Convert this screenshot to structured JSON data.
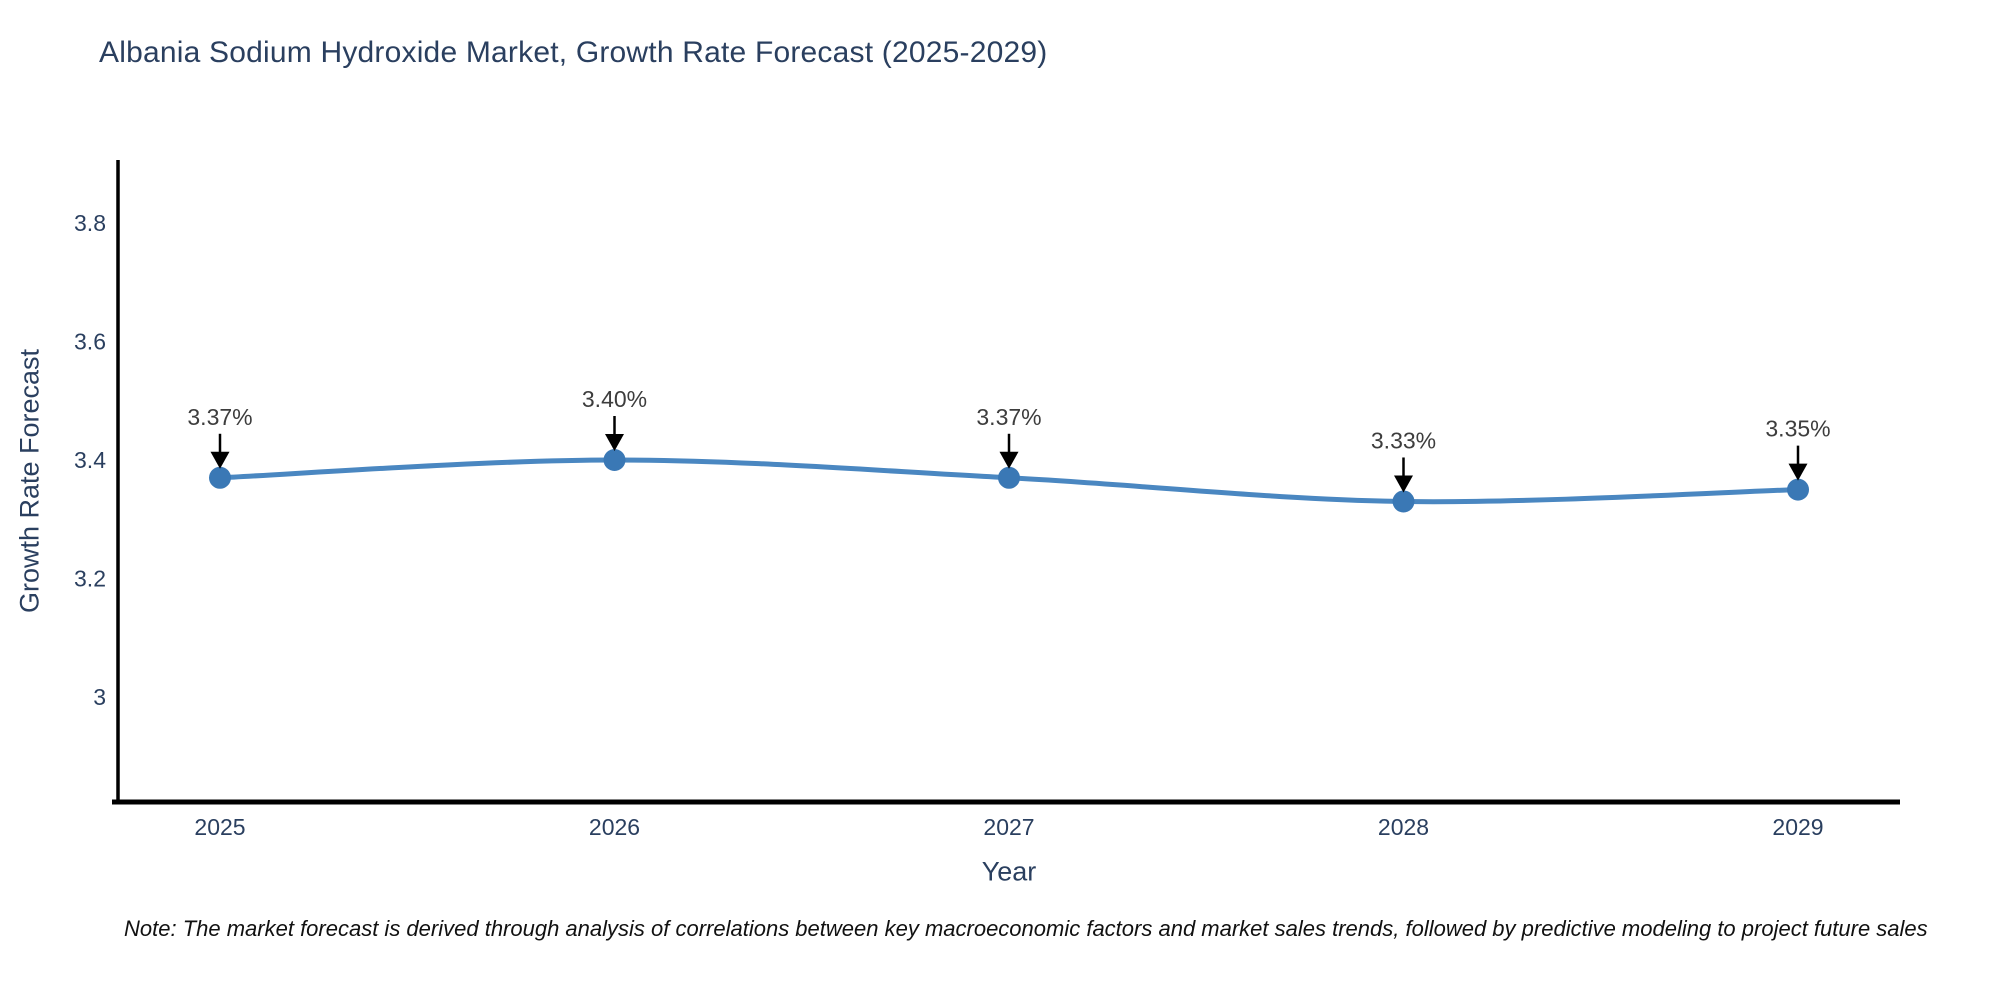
{
  "chart_data": {
    "type": "line",
    "title": "Albania Sodium Hydroxide Market, Growth Rate Forecast (2025-2029)",
    "x": [
      "2025",
      "2026",
      "2027",
      "2028",
      "2029"
    ],
    "series": [
      {
        "name": "Growth Rate Forecast",
        "values": [
          3.37,
          3.4,
          3.37,
          3.33,
          3.35
        ]
      }
    ],
    "point_labels": [
      "3.37%",
      "3.40%",
      "3.37%",
      "3.33%",
      "3.35%"
    ],
    "xlabel": "Year",
    "ylabel": "Growth Rate Forecast",
    "ytick_labels": [
      "3",
      "3.2",
      "3.4",
      "3.6",
      "3.8"
    ],
    "ytick_values": [
      3.0,
      3.2,
      3.4,
      3.6,
      3.8
    ],
    "ylim": [
      2.81,
      3.91
    ],
    "line_shape": "spline",
    "grid": false,
    "legend": "none",
    "colors": {
      "line": "#4a87c1",
      "marker": "#3a78b5",
      "axis_line": "#000000",
      "tick_text": "#2a3f5f",
      "title_text": "#2a3f5f",
      "annotation_text": "#3d3d3d",
      "annotation_arrow": "#000000",
      "background": "#ffffff"
    }
  },
  "note": "Note: The market forecast is derived through analysis of correlations between key macroeconomic factors and market sales trends, followed by predictive modeling to project future sales"
}
